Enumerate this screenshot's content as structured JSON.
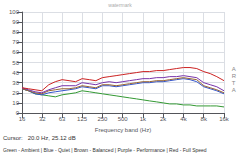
{
  "chart_data": {
    "type": "line",
    "xlabel": "Frequency band (Hz)",
    "annotations": [
      "A\nR\nT\nA",
      "watermark",
      "Cursor:   20.0 Hz, 25.12 dB",
      "Green - Ambient | Blue - Quiet | Brown - Balanced | Purple - Performance | Red - Full Speed"
    ],
    "log": "x",
    "grid": true,
    "xlim": [
      16,
      16000
    ],
    "xticks": [
      16,
      32,
      63,
      125,
      250,
      500,
      {
        "value": 1000,
        "label": "1k"
      },
      {
        "value": 2000,
        "label": "2k"
      },
      {
        "value": 4000,
        "label": "4k"
      },
      {
        "value": 8000,
        "label": "8k"
      },
      {
        "value": 16000,
        "label": "16k"
      }
    ],
    "ylim": [
      0.0,
      100.0
    ],
    "yticks": [
      0.0,
      10.0,
      20.0,
      30.0,
      40.0,
      50.0,
      60.0,
      70.0,
      80.0,
      90.0,
      100.0
    ],
    "x": [
      16,
      20,
      25,
      31.5,
      40,
      50,
      63,
      80,
      100,
      125,
      160,
      200,
      250,
      315,
      400,
      500,
      630,
      800,
      1000,
      1250,
      1600,
      2000,
      2500,
      3150,
      4000,
      5000,
      6300,
      8000,
      10000,
      12500,
      16000
    ],
    "series": [
      {
        "color": "#339933",
        "values": [
          24,
          22,
          19,
          18,
          17,
          16,
          18,
          19,
          20,
          22,
          21,
          20,
          19,
          18,
          17,
          16,
          15,
          14,
          13,
          12,
          11,
          10,
          9,
          9,
          8,
          8,
          7,
          7,
          7,
          7,
          6
        ]
      },
      {
        "color": "#3355cc",
        "values": [
          24,
          22,
          19,
          18,
          20,
          21,
          22,
          23,
          24,
          26,
          25,
          24,
          27,
          27,
          26,
          27,
          28,
          29,
          30,
          30,
          31,
          31,
          32,
          33,
          34,
          33,
          31,
          26,
          24,
          22,
          19
        ]
      },
      {
        "color": "#996633",
        "values": [
          24,
          22,
          20,
          19,
          22,
          23,
          24,
          24,
          25,
          27,
          26,
          25,
          28,
          28,
          27,
          28,
          29,
          30,
          31,
          31,
          32,
          32,
          33,
          34,
          35,
          34,
          33,
          27,
          25,
          23,
          20
        ]
      },
      {
        "color": "#7733aa",
        "values": [
          25,
          23,
          21,
          20,
          23,
          25,
          27,
          27,
          27,
          30,
          29,
          28,
          30,
          31,
          30,
          31,
          32,
          33,
          34,
          34,
          35,
          35,
          36,
          36,
          37,
          36,
          35,
          30,
          28,
          26,
          22
        ]
      },
      {
        "color": "#cc2222",
        "values": [
          25,
          24,
          23,
          22,
          28,
          31,
          33,
          32,
          31,
          34,
          33,
          32,
          35,
          36,
          37,
          38,
          39,
          40,
          41,
          41,
          42,
          42,
          43,
          44,
          45,
          45,
          44,
          41,
          39,
          36,
          32
        ]
      }
    ]
  }
}
